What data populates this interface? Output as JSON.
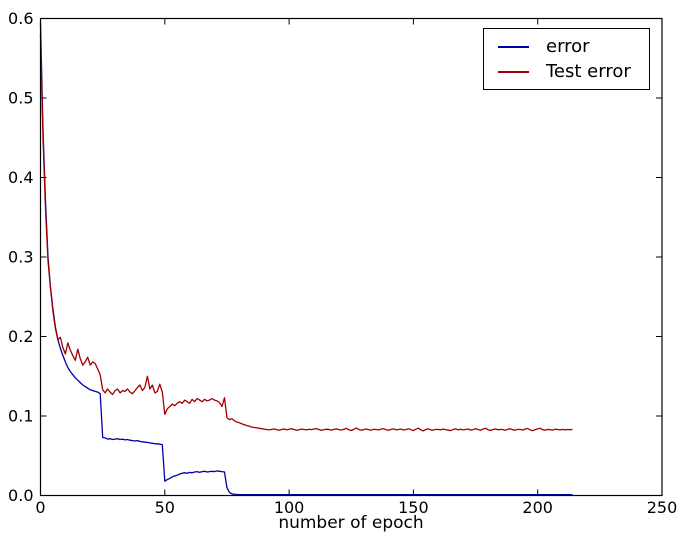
{
  "chart_data": {
    "type": "line",
    "title": "",
    "xlabel": "number of epoch",
    "ylabel": "",
    "xlim": [
      0,
      250
    ],
    "ylim": [
      0.0,
      0.6
    ],
    "grid": false,
    "legend_position": "upper right",
    "axis_color": "#000000",
    "background_color": "#ffffff",
    "xticks": {
      "values": [
        0,
        50,
        100,
        150,
        200,
        250
      ],
      "labels": [
        "0",
        "50",
        "100",
        "150",
        "200",
        "250"
      ]
    },
    "yticks": {
      "values": [
        0.0,
        0.1,
        0.2,
        0.3,
        0.4,
        0.5,
        0.6
      ],
      "labels": [
        "0.0",
        "0.1",
        "0.2",
        "0.3",
        "0.4",
        "0.5",
        "0.6"
      ]
    },
    "x_is_index": true,
    "series": [
      {
        "name": "error",
        "color": "#0000AA",
        "y": [
          0.595,
          0.46,
          0.37,
          0.3,
          0.263,
          0.235,
          0.212,
          0.196,
          0.185,
          0.176,
          0.168,
          0.161,
          0.156,
          0.152,
          0.148,
          0.145,
          0.142,
          0.139,
          0.137,
          0.135,
          0.133,
          0.132,
          0.131,
          0.13,
          0.128,
          0.073,
          0.0725,
          0.071,
          0.0715,
          0.0705,
          0.071,
          0.0715,
          0.0705,
          0.071,
          0.07,
          0.0705,
          0.0695,
          0.069,
          0.0685,
          0.069,
          0.068,
          0.0675,
          0.067,
          0.0668,
          0.0662,
          0.0658,
          0.0652,
          0.065,
          0.0645,
          0.064,
          0.018,
          0.02,
          0.0215,
          0.0235,
          0.0245,
          0.0255,
          0.027,
          0.028,
          0.0285,
          0.028,
          0.029,
          0.0285,
          0.0295,
          0.03,
          0.029,
          0.03,
          0.0305,
          0.0295,
          0.03,
          0.0305,
          0.03,
          0.031,
          0.0305,
          0.03,
          0.0295,
          0.01,
          0.004,
          0.002,
          0.0015,
          0.0012,
          0.001,
          0.001,
          0.001,
          0.001,
          0.001,
          0.001,
          0.001,
          0.001,
          0.001,
          0.001,
          0.001,
          0.001,
          0.001,
          0.001,
          0.001,
          0.001,
          0.001,
          0.001,
          0.001,
          0.001,
          0.001,
          0.001,
          0.001,
          0.001,
          0.001,
          0.001,
          0.001,
          0.001,
          0.001,
          0.001,
          0.001,
          0.001,
          0.001,
          0.001,
          0.001,
          0.001,
          0.001,
          0.001,
          0.001,
          0.001,
          0.001,
          0.001,
          0.001,
          0.001,
          0.001,
          0.001,
          0.001,
          0.001,
          0.001,
          0.001,
          0.001,
          0.001,
          0.001,
          0.001,
          0.001,
          0.001,
          0.001,
          0.001,
          0.001,
          0.001,
          0.001,
          0.001,
          0.001,
          0.001,
          0.001,
          0.001,
          0.001,
          0.001,
          0.001,
          0.001,
          0.001,
          0.001,
          0.001,
          0.001,
          0.001,
          0.001,
          0.001,
          0.001,
          0.001,
          0.001,
          0.001,
          0.001,
          0.001,
          0.001,
          0.001,
          0.001,
          0.001,
          0.001,
          0.001,
          0.001,
          0.001,
          0.001,
          0.001,
          0.001,
          0.001,
          0.001,
          0.001,
          0.001,
          0.001,
          0.001,
          0.001,
          0.001,
          0.001,
          0.001,
          0.001,
          0.001,
          0.001,
          0.001,
          0.001,
          0.001,
          0.001,
          0.001,
          0.001,
          0.001,
          0.001,
          0.001,
          0.001,
          0.001,
          0.001,
          0.001,
          0.001,
          0.001,
          0.001,
          0.001,
          0.001,
          0.001,
          0.001,
          0.001,
          0.001,
          0.001,
          0.001,
          0.001,
          0.001,
          0.001,
          0.001
        ]
      },
      {
        "name": "Test error",
        "color": "#A00000",
        "y": [
          0.58,
          0.45,
          0.36,
          0.295,
          0.262,
          0.232,
          0.21,
          0.196,
          0.199,
          0.186,
          0.178,
          0.192,
          0.183,
          0.176,
          0.17,
          0.184,
          0.172,
          0.164,
          0.168,
          0.174,
          0.164,
          0.168,
          0.166,
          0.159,
          0.152,
          0.133,
          0.129,
          0.134,
          0.13,
          0.127,
          0.132,
          0.134,
          0.129,
          0.132,
          0.131,
          0.134,
          0.13,
          0.128,
          0.132,
          0.136,
          0.139,
          0.132,
          0.136,
          0.15,
          0.134,
          0.139,
          0.129,
          0.131,
          0.14,
          0.13,
          0.102,
          0.109,
          0.112,
          0.115,
          0.113,
          0.116,
          0.118,
          0.116,
          0.12,
          0.118,
          0.116,
          0.121,
          0.118,
          0.122,
          0.12,
          0.118,
          0.121,
          0.119,
          0.12,
          0.122,
          0.12,
          0.119,
          0.117,
          0.112,
          0.123,
          0.098,
          0.0955,
          0.0965,
          0.094,
          0.0925,
          0.0915,
          0.09,
          0.089,
          0.088,
          0.0872,
          0.086,
          0.0855,
          0.085,
          0.0845,
          0.084,
          0.0835,
          0.083,
          0.0825,
          0.0832,
          0.0838,
          0.0828,
          0.0822,
          0.083,
          0.0836,
          0.0827,
          0.0833,
          0.084,
          0.083,
          0.0822,
          0.0828,
          0.0835,
          0.083,
          0.0825,
          0.0833,
          0.0829,
          0.0836,
          0.0842,
          0.083,
          0.082,
          0.0827,
          0.0834,
          0.083,
          0.0823,
          0.0831,
          0.0838,
          0.0829,
          0.0824,
          0.0832,
          0.0845,
          0.0826,
          0.0818,
          0.083,
          0.085,
          0.0832,
          0.0821,
          0.0829,
          0.0836,
          0.0828,
          0.0822,
          0.0833,
          0.083,
          0.0825,
          0.0835,
          0.0841,
          0.0827,
          0.082,
          0.0831,
          0.0838,
          0.0826,
          0.083,
          0.0836,
          0.0824,
          0.0829,
          0.084,
          0.0828,
          0.0816,
          0.0834,
          0.0846,
          0.0825,
          0.0812,
          0.083,
          0.0839,
          0.0827,
          0.0822,
          0.0833,
          0.083,
          0.0826,
          0.0835,
          0.0829,
          0.0822,
          0.0816,
          0.0831,
          0.0838,
          0.0827,
          0.0833,
          0.0825,
          0.083,
          0.0837,
          0.0823,
          0.0829,
          0.0841,
          0.083,
          0.082,
          0.0835,
          0.0847,
          0.0828,
          0.0818,
          0.083,
          0.0836,
          0.0826,
          0.0832,
          0.0829,
          0.0822,
          0.0834,
          0.084,
          0.0827,
          0.0821,
          0.0833,
          0.083,
          0.0824,
          0.0836,
          0.0843,
          0.0825,
          0.0815,
          0.0829,
          0.0838,
          0.0845,
          0.0827,
          0.082,
          0.0832,
          0.0828,
          0.0823,
          0.0834,
          0.083,
          0.0825,
          0.0831,
          0.0827,
          0.083,
          0.0828,
          0.083
        ]
      }
    ]
  }
}
